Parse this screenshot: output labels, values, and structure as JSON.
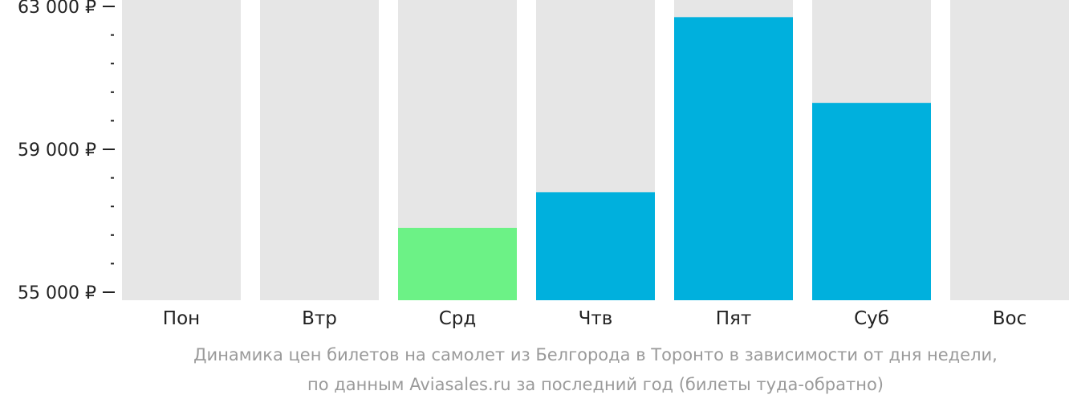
{
  "chart_data": {
    "type": "bar",
    "categories": [
      "Пон",
      "Втр",
      "Срд",
      "Чтв",
      "Пят",
      "Суб",
      "Вос"
    ],
    "values": [
      null,
      null,
      56800,
      57800,
      62700,
      60300,
      null
    ],
    "ylim": [
      55000,
      63000
    ],
    "yticks": [
      {
        "value": 63000,
        "label": "63 000 ₽"
      },
      {
        "value": 59000,
        "label": "59 000 ₽"
      },
      {
        "value": 55000,
        "label": "55 000 ₽"
      }
    ],
    "minor_tick_step": 800,
    "colors": {
      "background_bar": "#e6e6e6",
      "bar": "#00b0dd",
      "lowest_bar": "#6cf286",
      "axis": "#222222"
    },
    "lowest_category": "Срд"
  },
  "caption": {
    "line1": "Динамика цен билетов на самолет из Белгорода в Торонто в зависимости от дня недели,",
    "line2": "по данным Aviasales.ru за последний год (билеты туда-обратно)"
  }
}
